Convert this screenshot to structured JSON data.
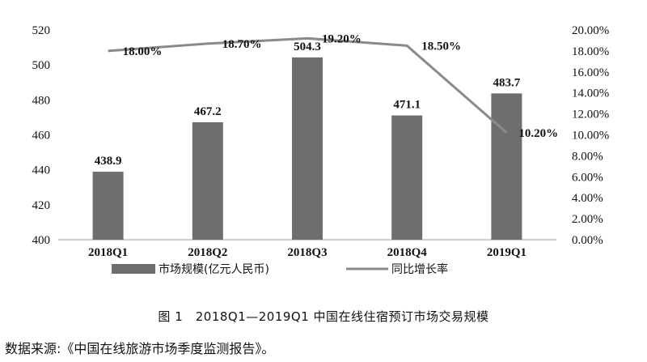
{
  "chart_data": {
    "type": "bar+line",
    "categories": [
      "2018Q1",
      "2018Q2",
      "2018Q3",
      "2018Q4",
      "2019Q1"
    ],
    "series": [
      {
        "name": "市场规模(亿元人民币)",
        "kind": "bar",
        "axis": "left",
        "values": [
          438.9,
          467.2,
          504.3,
          471.1,
          483.7
        ],
        "labels": [
          "438.9",
          "467.2",
          "504.3",
          "471.1",
          "483.7"
        ]
      },
      {
        "name": "同比增长率",
        "kind": "line",
        "axis": "right",
        "values": [
          18.0,
          18.7,
          19.2,
          18.5,
          10.2
        ],
        "labels": [
          "18.00%",
          "18.70%",
          "19.20%",
          "18.50%",
          "10.20%"
        ]
      }
    ],
    "y_left": {
      "min": 400,
      "max": 520,
      "ticks": [
        "400",
        "420",
        "440",
        "460",
        "480",
        "500",
        "520"
      ]
    },
    "y_right": {
      "min": 0,
      "max": 20,
      "ticks": [
        "0.00%",
        "2.00%",
        "4.00%",
        "6.00%",
        "8.00%",
        "10.00%",
        "12.00%",
        "14.00%",
        "16.00%",
        "18.00%",
        "20.00%"
      ]
    },
    "legend_position": "bottom",
    "grid": false,
    "colors": {
      "bar": "#6e6e6e",
      "line": "#8a8a8a",
      "axis": "#bfbfbf"
    }
  },
  "caption": "图 1　2018Q1—2019Q1 中国在线住宿预订市场交易规模",
  "source": "数据来源:《中国在线旅游市场季度监测报告》。"
}
